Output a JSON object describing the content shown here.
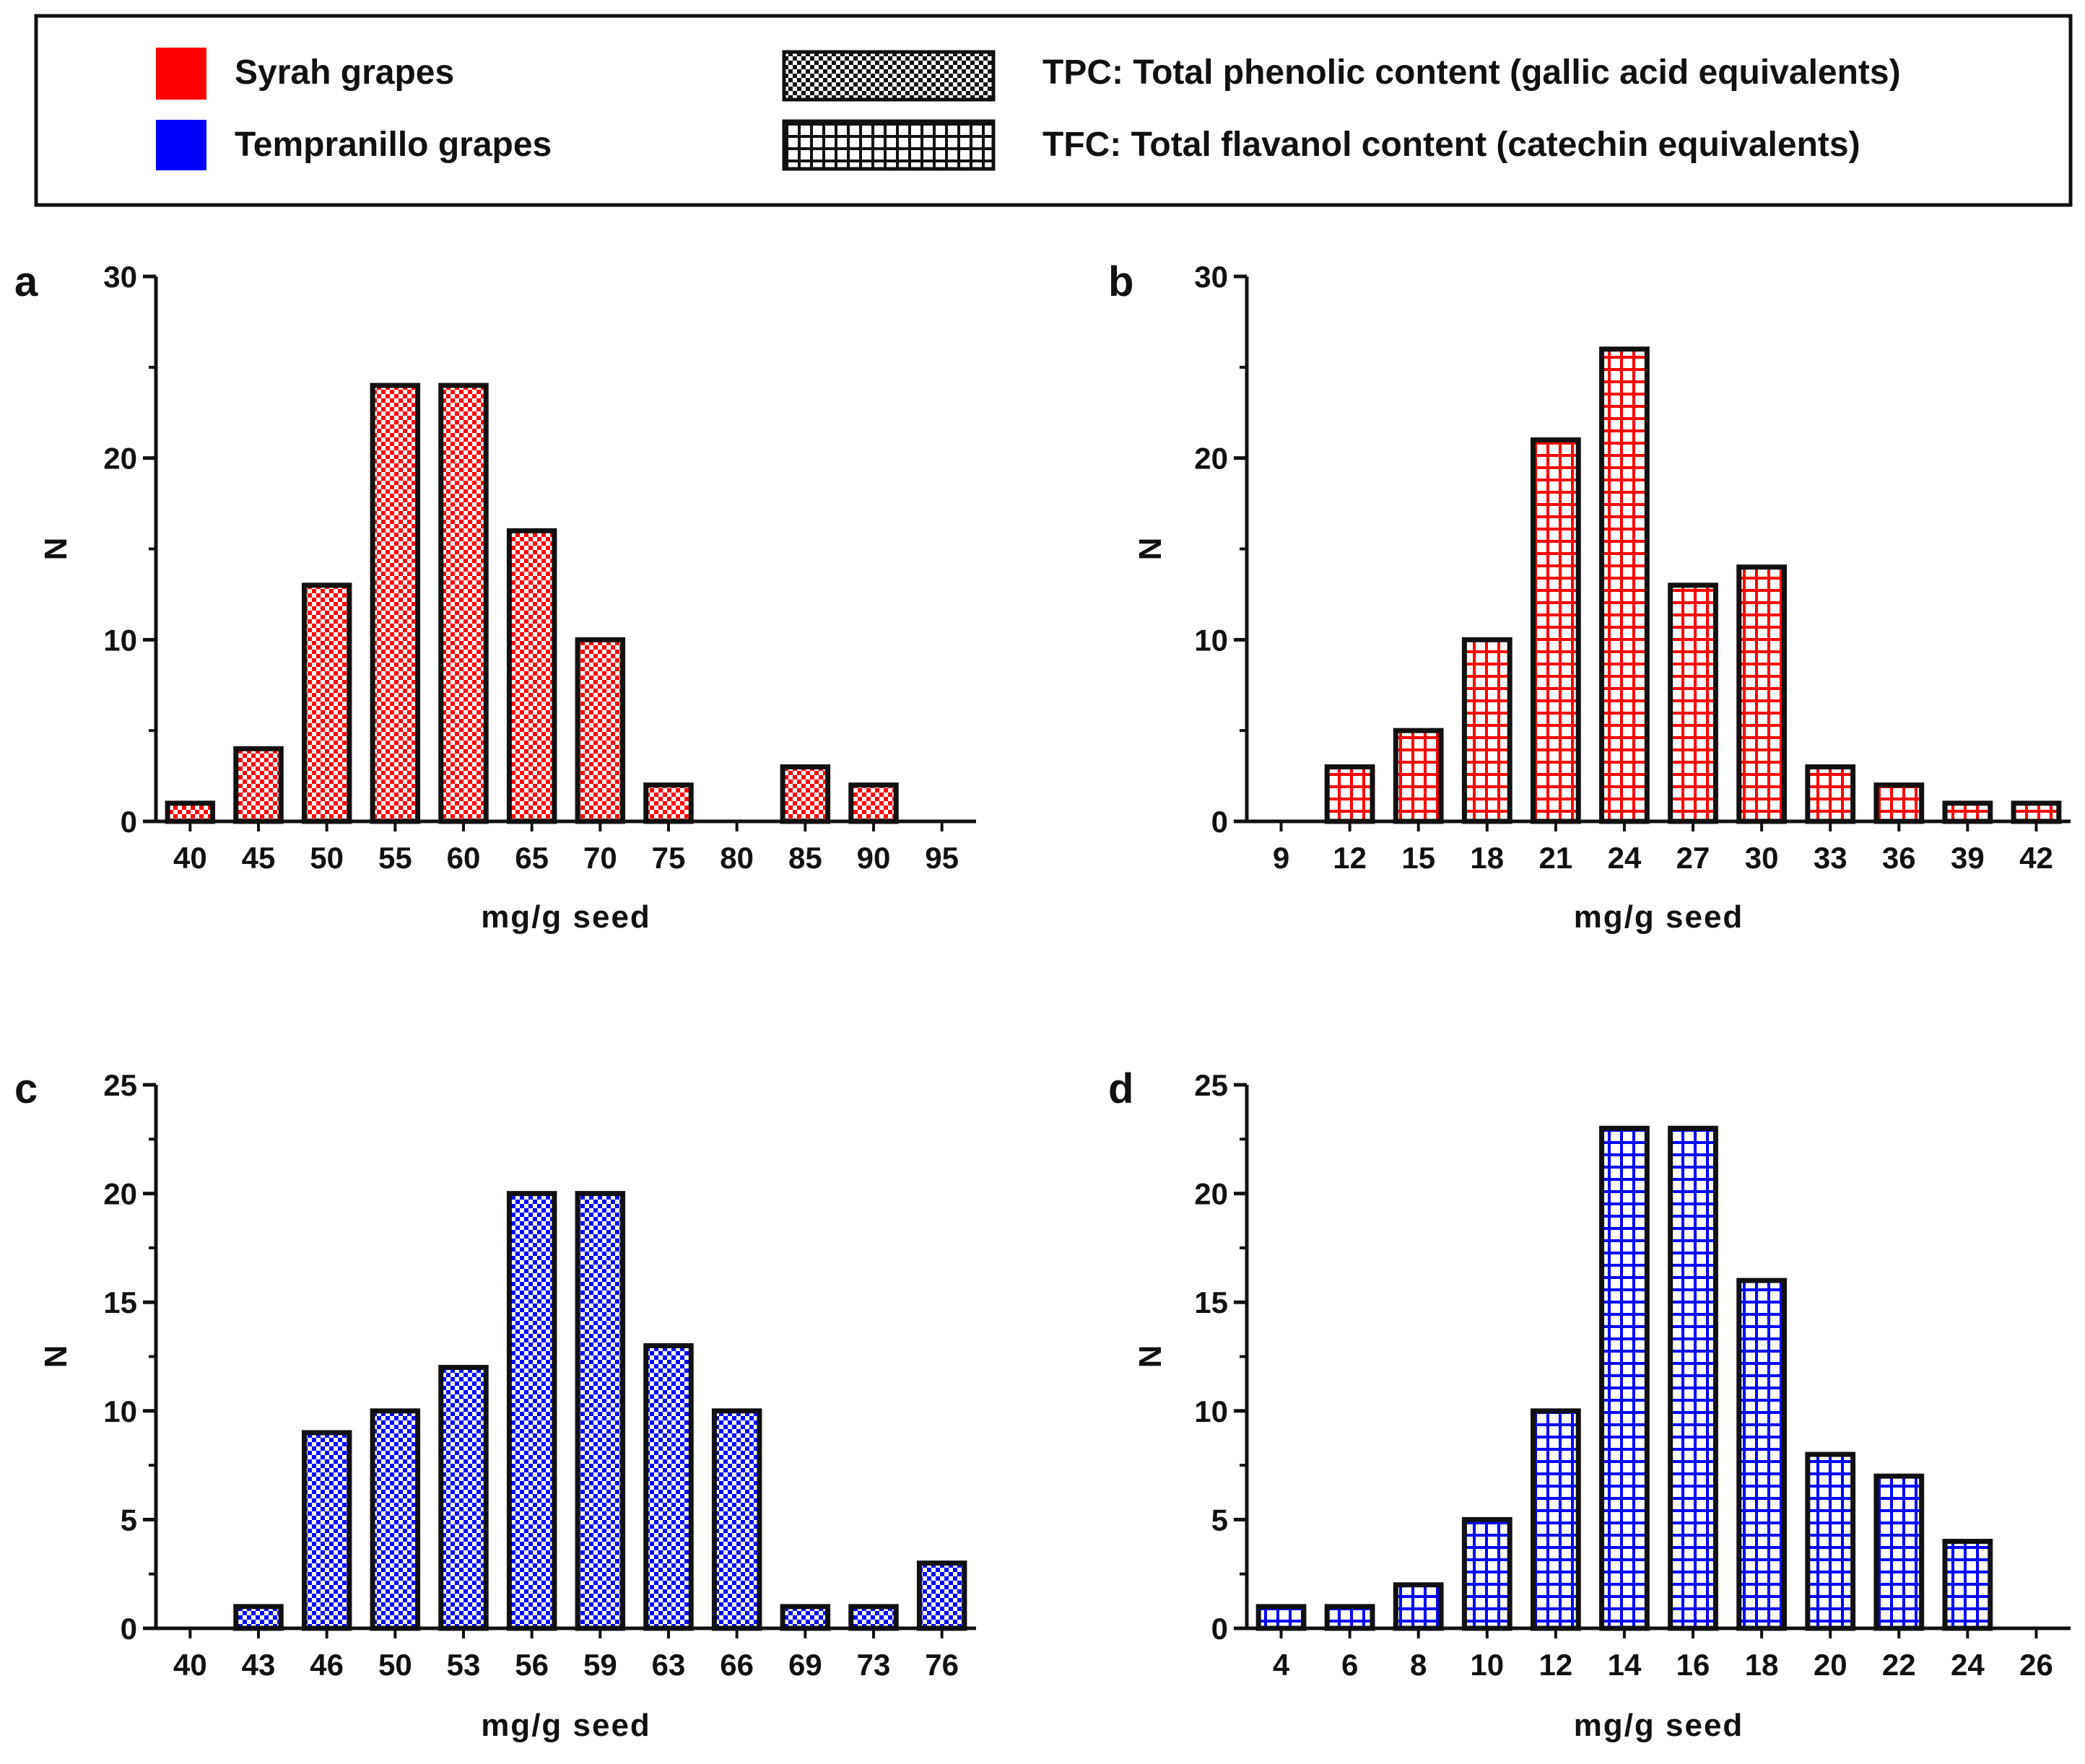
{
  "legend": {
    "grapes": [
      {
        "label": "Syrah grapes",
        "color": "#ff0000"
      },
      {
        "label": "Tempranillo grapes",
        "color": "#0000ff"
      }
    ],
    "patterns": [
      {
        "pattern": "checker",
        "label": "TPC: Total phenolic content (gallic acid equivalents)"
      },
      {
        "pattern": "grid",
        "label": "TFC: Total flavanol content (catechin equivalents)"
      }
    ]
  },
  "chart_data": [
    {
      "panel": "a",
      "type": "bar",
      "grape": "Syrah grapes",
      "measure": "TPC",
      "pattern": "checker",
      "color": "#ff0000",
      "categories": [
        "40",
        "45",
        "50",
        "55",
        "60",
        "65",
        "70",
        "75",
        "80",
        "85",
        "90",
        "95"
      ],
      "values": [
        1,
        4,
        13,
        24,
        24,
        16,
        10,
        2,
        0,
        3,
        2,
        0
      ],
      "xlabel": "mg/g seed",
      "ylabel": "N",
      "ylim": [
        0,
        30
      ],
      "yticks": [
        0,
        10,
        20,
        30
      ]
    },
    {
      "panel": "b",
      "type": "bar",
      "grape": "Syrah grapes",
      "measure": "TFC",
      "pattern": "grid",
      "color": "#ff0000",
      "categories": [
        "9",
        "12",
        "15",
        "18",
        "21",
        "24",
        "27",
        "30",
        "33",
        "36",
        "39",
        "42"
      ],
      "values": [
        0,
        3,
        5,
        10,
        21,
        26,
        13,
        14,
        3,
        2,
        1,
        1
      ],
      "xlabel": "mg/g seed",
      "ylabel": "N",
      "ylim": [
        0,
        30
      ],
      "yticks": [
        0,
        10,
        20,
        30
      ]
    },
    {
      "panel": "c",
      "type": "bar",
      "grape": "Tempranillo grapes",
      "measure": "TPC",
      "pattern": "checker",
      "color": "#0000ff",
      "categories": [
        "40",
        "43",
        "46",
        "50",
        "53",
        "56",
        "59",
        "63",
        "66",
        "69",
        "73",
        "76"
      ],
      "values": [
        0,
        1,
        9,
        10,
        12,
        20,
        20,
        13,
        10,
        1,
        1,
        3
      ],
      "xlabel": "mg/g seed",
      "ylabel": "N",
      "ylim": [
        0,
        25
      ],
      "yticks": [
        0,
        5,
        10,
        15,
        20,
        25
      ]
    },
    {
      "panel": "d",
      "type": "bar",
      "grape": "Tempranillo grapes",
      "measure": "TFC",
      "pattern": "grid",
      "color": "#0000ff",
      "categories": [
        "4",
        "6",
        "8",
        "10",
        "12",
        "14",
        "16",
        "18",
        "20",
        "22",
        "24",
        "26"
      ],
      "values": [
        1,
        1,
        2,
        5,
        10,
        23,
        23,
        16,
        8,
        7,
        4,
        0
      ],
      "xlabel": "mg/g seed",
      "ylabel": "N",
      "ylim": [
        0,
        25
      ],
      "yticks": [
        0,
        5,
        10,
        15,
        20,
        25
      ]
    }
  ]
}
